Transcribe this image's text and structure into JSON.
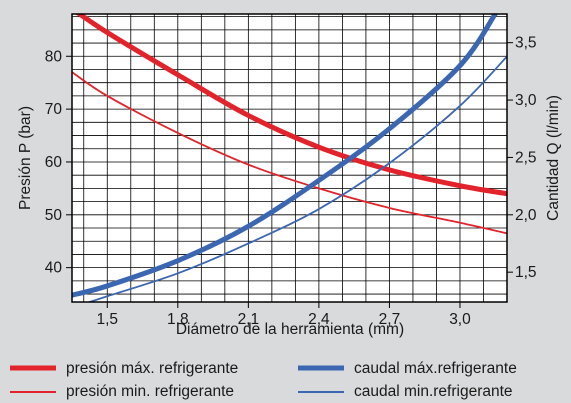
{
  "chart_data": {
    "type": "line",
    "xlabel": "Diámetro de la herramienta (mm)",
    "ylabel_left": "Presión P (bar)",
    "ylabel_right": "Cantidad Q (l/min)",
    "x_range": [
      1.35,
      3.2
    ],
    "x_ticks": [
      1.5,
      1.8,
      2.1,
      2.4,
      2.7,
      3.0
    ],
    "x_tick_labels": [
      "1,5",
      "1,8",
      "2,1",
      "2,4",
      "2,7",
      "3,0"
    ],
    "y_left_range": [
      33.5,
      88
    ],
    "y_left_ticks": [
      40,
      50,
      60,
      70,
      80
    ],
    "y_left_tick_labels": [
      "40",
      "50",
      "60",
      "70",
      "80"
    ],
    "y_right_range": [
      1.24,
      3.75
    ],
    "y_right_ticks": [
      1.5,
      2.0,
      2.5,
      3.0,
      3.5
    ],
    "y_right_tick_labels": [
      "1,5",
      "2,0",
      "2,5",
      "3,0",
      "3,5"
    ],
    "grid": true,
    "legend_position": "bottom",
    "series": [
      {
        "name": "presión máx. refrigerante",
        "axis": "left",
        "color": "#e3232b",
        "weight": "thick",
        "x": [
          1.35,
          1.5,
          1.8,
          2.1,
          2.4,
          2.7,
          3.0,
          3.2
        ],
        "y": [
          89,
          84.5,
          76.5,
          68.8,
          62.8,
          58.5,
          55.5,
          54
        ]
      },
      {
        "name": "presión min. refrigerante",
        "axis": "left",
        "color": "#e3232b",
        "weight": "thin",
        "x": [
          1.35,
          1.5,
          1.8,
          2.1,
          2.4,
          2.7,
          3.0,
          3.2
        ],
        "y": [
          77,
          72.5,
          65.5,
          59.5,
          55,
          51.3,
          48.5,
          46.5
        ]
      },
      {
        "name": "caudal máx.refrigerante",
        "axis": "right",
        "color": "#3b66b1",
        "weight": "thick",
        "x": [
          1.35,
          1.5,
          1.8,
          2.1,
          2.4,
          2.7,
          3.0,
          3.15
        ],
        "y": [
          1.3,
          1.38,
          1.6,
          1.9,
          2.3,
          2.75,
          3.3,
          3.75
        ]
      },
      {
        "name": "caudal min.refrigerante",
        "axis": "right",
        "color": "#3b66b1",
        "weight": "thin",
        "x": [
          1.35,
          1.5,
          1.8,
          2.1,
          2.4,
          2.7,
          3.0,
          3.2
        ],
        "y": [
          1.19,
          1.29,
          1.49,
          1.75,
          2.05,
          2.45,
          2.95,
          3.38
        ]
      }
    ]
  }
}
